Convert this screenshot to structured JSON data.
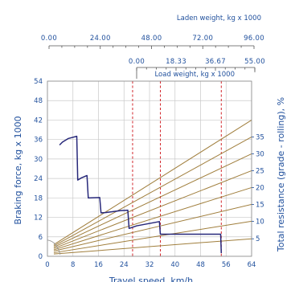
{
  "chart_data": {
    "type": "line",
    "ylabel": "Braking force, kg x 1000",
    "y2label": "Total resistance (grade - rolling), %",
    "xlabel": "Travel speed, km/h",
    "top_scale_1": {
      "label": "Laden weight, kg x 1000",
      "ticks": [
        "0.00",
        "24.00",
        "48.00",
        "72.00",
        "96.00"
      ]
    },
    "top_scale_2": {
      "label": "Load weight, kg x 1000",
      "ticks": [
        "0.00",
        "18.33",
        "36.67",
        "55.00"
      ]
    },
    "x_ticks": [
      "0",
      "8",
      "16",
      "24",
      "32",
      "40",
      "48",
      "56",
      "64"
    ],
    "y_ticks": [
      "0",
      "6",
      "12",
      "18",
      "24",
      "30",
      "36",
      "42",
      "48",
      "54"
    ],
    "y2_ticks": [
      "5",
      "10",
      "15",
      "20",
      "25",
      "30",
      "35"
    ],
    "xlim": [
      0,
      64
    ],
    "ylim": [
      0,
      54
    ],
    "grid": true,
    "reference_lines_x": [
      26.7,
      35.4,
      54.5
    ],
    "resistance_lines": [
      {
        "label": "5",
        "start": [
          2,
          0.7
        ],
        "end": [
          64,
          5.4
        ]
      },
      {
        "label": "10",
        "start": [
          2,
          1.1
        ],
        "end": [
          64,
          10.8
        ]
      },
      {
        "label": "15",
        "start": [
          2,
          1.6
        ],
        "end": [
          64,
          16.0
        ]
      },
      {
        "label": "20",
        "start": [
          2,
          2.0
        ],
        "end": [
          64,
          21.2
        ]
      },
      {
        "label": "25",
        "start": [
          2,
          2.4
        ],
        "end": [
          64,
          26.4
        ]
      },
      {
        "label": "30",
        "start": [
          2,
          2.8
        ],
        "end": [
          64,
          31.6
        ]
      },
      {
        "label": "35",
        "start": [
          2,
          3.2
        ],
        "end": [
          64,
          36.8
        ]
      },
      {
        "label": "",
        "start": [
          2,
          3.6
        ],
        "end": [
          64,
          42.0
        ]
      }
    ],
    "braking_curve": {
      "points": [
        [
          3.8,
          34.3
        ],
        [
          4.7,
          35.2
        ],
        [
          6.5,
          36.3
        ],
        [
          9.2,
          37.0
        ],
        [
          9.5,
          23.5
        ],
        [
          10.7,
          24.2
        ],
        [
          12.4,
          24.9
        ],
        [
          12.8,
          18.0
        ],
        [
          16.4,
          18.1
        ],
        [
          16.8,
          13.4
        ],
        [
          18.4,
          13.5
        ],
        [
          23.0,
          14.1
        ],
        [
          25.2,
          14.2
        ],
        [
          25.6,
          8.6
        ],
        [
          28.0,
          9.4
        ],
        [
          35.1,
          10.7
        ],
        [
          35.4,
          6.8
        ],
        [
          54.3,
          6.8
        ],
        [
          54.5,
          1.0
        ]
      ]
    }
  }
}
